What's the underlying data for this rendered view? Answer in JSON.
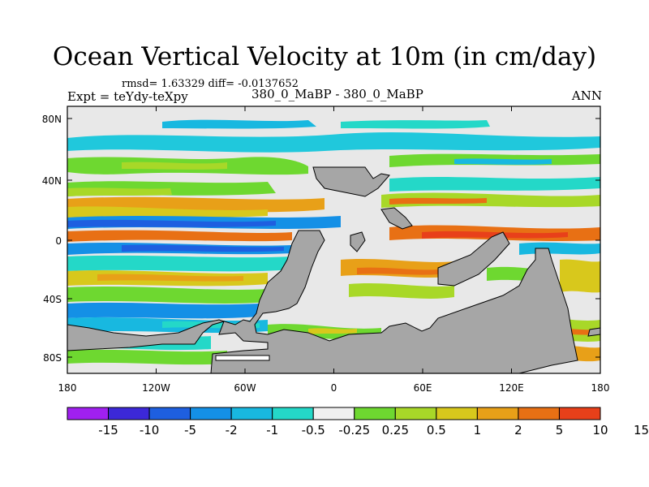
{
  "title": "Ocean Vertical Velocity at 10m (in cm/day)",
  "stats_line": "rmsd= 1.63329 diff= -0.0137652",
  "left_label": "Expt = teYdy-teXpy",
  "center_label": "380_0_MaBP - 380_0_MaBP",
  "right_label": "ANN",
  "map": {
    "lat_ticks": [
      "80N",
      "40N",
      "0",
      "40S",
      "80S"
    ],
    "lon_ticks": [
      "180",
      "120W",
      "60W",
      "0",
      "60E",
      "120E",
      "180"
    ],
    "land_color": "#a6a6a6"
  },
  "colorbar": {
    "colors": [
      "#a020f0",
      "#3c28d8",
      "#1e5fe0",
      "#1490e6",
      "#18b8e0",
      "#24d8c8",
      "#f0f0f0",
      "#6ed830",
      "#a8d828",
      "#d8c81c",
      "#e8a018",
      "#e87014",
      "#e8401a"
    ],
    "labels": [
      "-15",
      "-10",
      "-5",
      "-2",
      "-1",
      "-0.5",
      "-0.25",
      "0.25",
      "0.5",
      "1",
      "2",
      "5",
      "10",
      "15"
    ]
  }
}
